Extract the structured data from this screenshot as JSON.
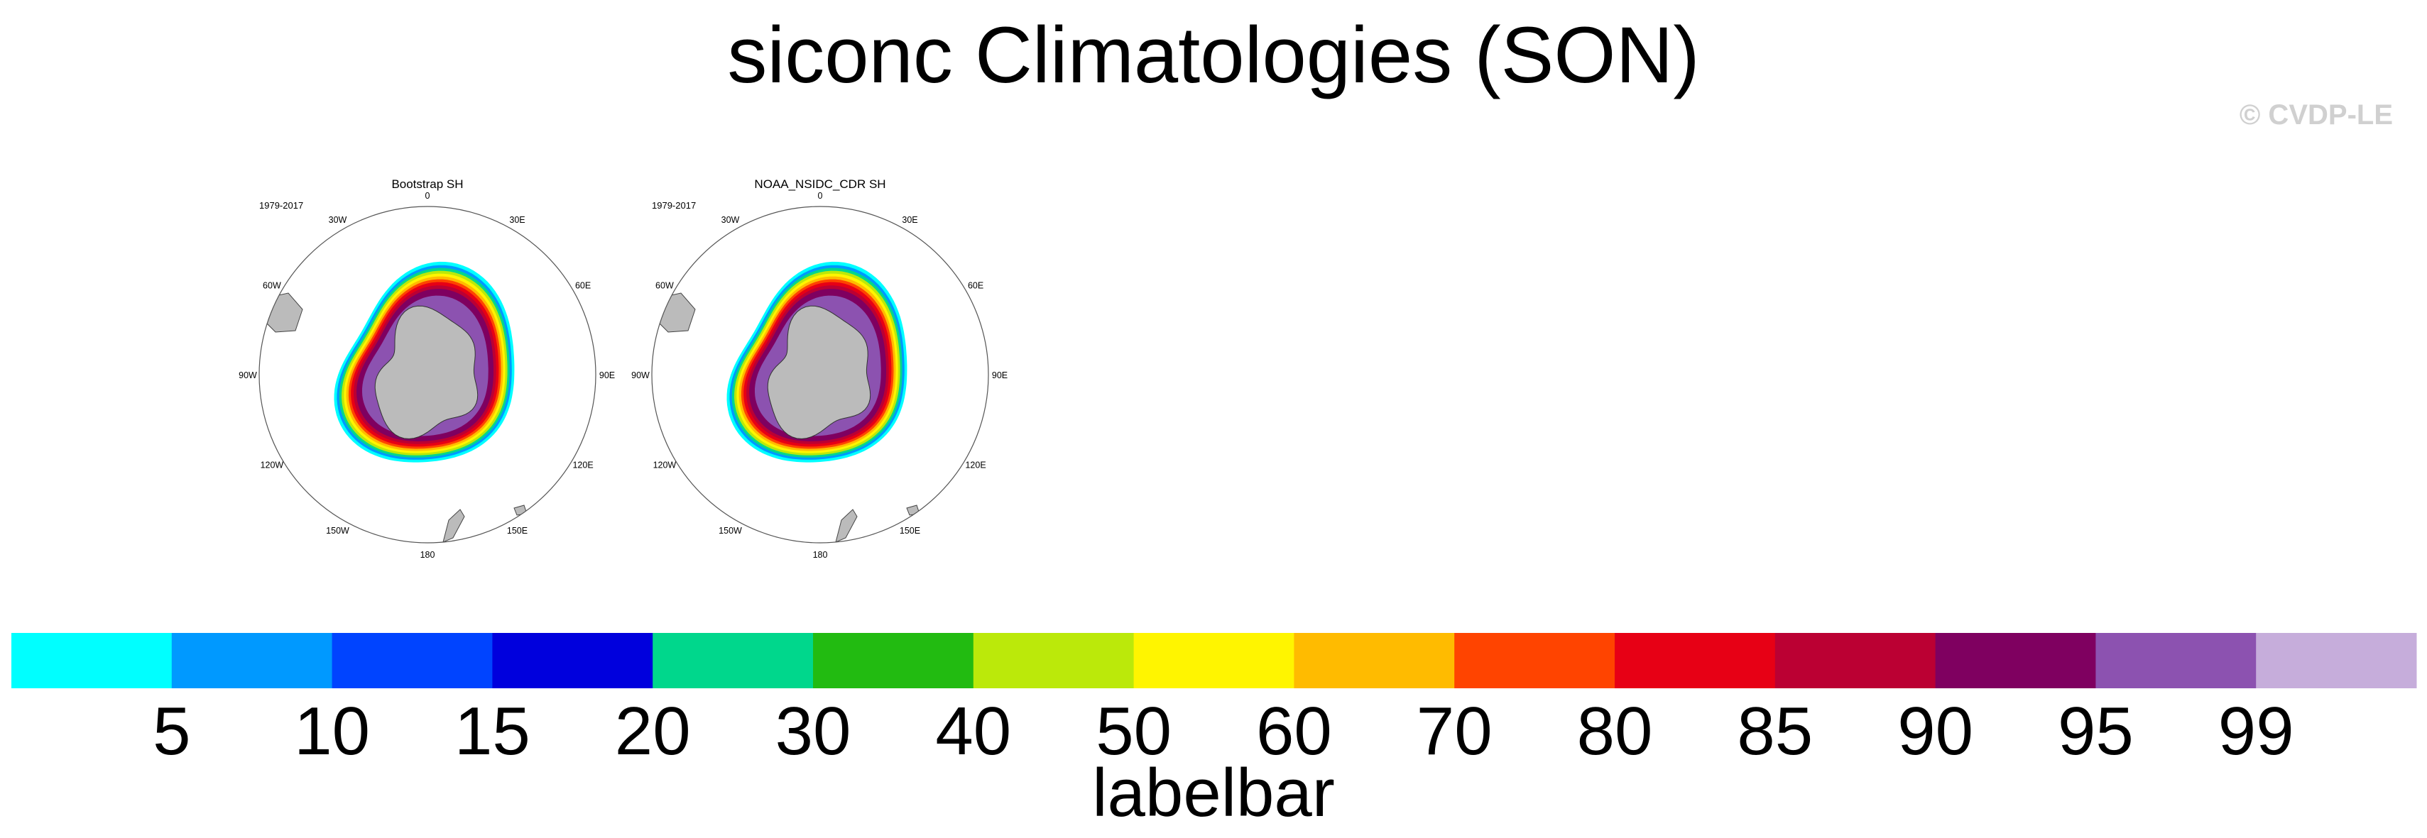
{
  "title": "siconc Climatologies (SON)",
  "watermark": "© CVDP-LE",
  "chart_data": {
    "type": "heatmap",
    "projection": "south polar stereographic",
    "panels": [
      {
        "title": "Bootstrap SH",
        "period": "1979-2017"
      },
      {
        "title": "NOAA_NSIDC_CDR SH",
        "period": "1979-2017"
      }
    ],
    "longitude_labels": [
      "0",
      "30E",
      "60E",
      "90E",
      "120E",
      "150E",
      "180",
      "150W",
      "120W",
      "90W",
      "60W",
      "30W"
    ],
    "colorbar": {
      "title": "labelbar",
      "levels": [
        "5",
        "10",
        "15",
        "20",
        "30",
        "40",
        "50",
        "60",
        "70",
        "80",
        "85",
        "90",
        "95",
        "99"
      ],
      "colors": [
        "#00ffff",
        "#0099ff",
        "#0044ff",
        "#0000dd",
        "#00d78c",
        "#22bb11",
        "#bbe90a",
        "#fff500",
        "#ffbb00",
        "#ff4400",
        "#e70015",
        "#bb0033",
        "#7f0060",
        "#8c52b0",
        "#c6addb"
      ]
    },
    "land_color": "#bbbbbb"
  }
}
